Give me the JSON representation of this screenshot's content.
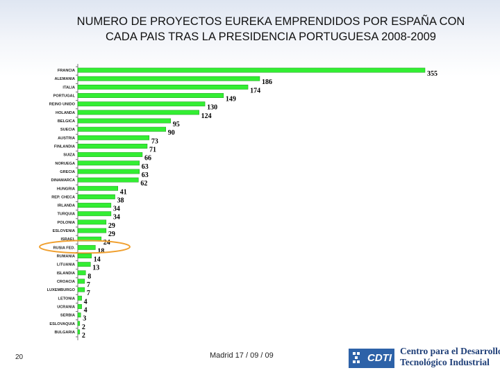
{
  "title_line1": "NUMERO DE PROYECTOS EUREKA EMPRENDIDOS POR ESPAÑA CON",
  "title_line2": "CADA PAIS TRAS LA PRESIDENCIA PORTUGUESA 2008-2009",
  "page_number": "20",
  "footer": "Madrid 17 / 09 / 09",
  "logo": {
    "acronym": "CDTI",
    "name_line1": "Centro para el Desarrollo",
    "name_line2": "Tecnológico Industrial",
    "color": "#2d62a8"
  },
  "colors": {
    "bar": "#33ee33",
    "bar_edge": "#1a9a1a",
    "highlight": "#f0a030"
  },
  "chart_data": {
    "type": "bar",
    "orientation": "horizontal",
    "title": "NUMERO DE PROYECTOS EUREKA EMPRENDIDOS POR ESPAÑA CON CADA PAIS TRAS LA PRESIDENCIA PORTUGUESA 2008-2009",
    "categories": [
      "FRANCIA",
      "ALEMANIA",
      "ITALIA",
      "PORTUGAL",
      "REINO UNIDO",
      "HOLANDA",
      "BELGICA",
      "SUECIA",
      "AUSTRIA",
      "FINLANDIA",
      "SUIZA",
      "NORUEGA",
      "GRECIA",
      "DINAMARCA",
      "HUNGRIA",
      "REP. CHECA",
      "IRLANDA",
      "TURQUIA",
      "POLONIA",
      "ESLOVENIA",
      "ISRAEL",
      "RUSIA FED.",
      "RUMANIA",
      "LITUANIA",
      "ISLANDIA",
      "CROACIA",
      "LUXEMBURGO",
      "LETONIA",
      "UCRANIA",
      "SERBIA",
      "ESLOVAQUIA",
      "BULGARIA"
    ],
    "values": [
      355,
      186,
      174,
      149,
      130,
      124,
      95,
      90,
      73,
      71,
      66,
      63,
      63,
      62,
      41,
      38,
      34,
      34,
      29,
      29,
      24,
      18,
      14,
      13,
      8,
      7,
      7,
      4,
      4,
      3,
      2,
      2
    ],
    "highlighted_category": "RUSIA FED.",
    "xlim": [
      0,
      355
    ],
    "grid": false,
    "legend": "none"
  }
}
